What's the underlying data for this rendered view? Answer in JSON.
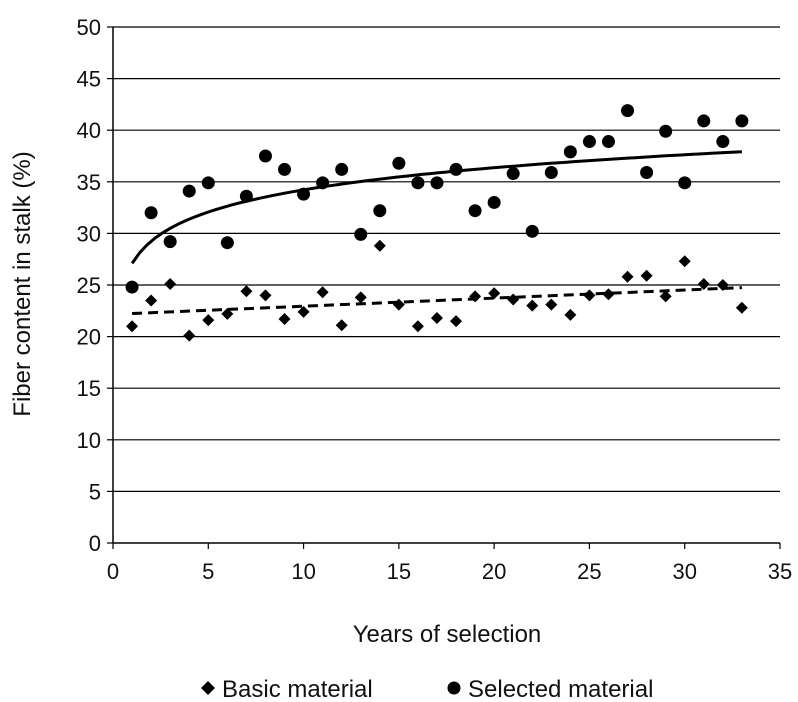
{
  "chart_data": {
    "type": "scatter",
    "title": "",
    "xlabel": "Years of selection",
    "ylabel": "Fiber content in stalk (%)",
    "xlim": [
      0,
      35
    ],
    "ylim": [
      0,
      50
    ],
    "x_ticks": [
      0,
      5,
      10,
      15,
      20,
      25,
      30,
      35
    ],
    "y_ticks": [
      0,
      5,
      10,
      15,
      20,
      25,
      30,
      35,
      40,
      45,
      50
    ],
    "grid": "horizontal",
    "legend_position": "bottom",
    "series": [
      {
        "name": "Basic material",
        "marker": "diamond",
        "color": "#000000",
        "trendline": "linear-dashed",
        "x": [
          1,
          2,
          3,
          4,
          5,
          6,
          7,
          8,
          9,
          10,
          11,
          12,
          13,
          14,
          15,
          16,
          17,
          18,
          19,
          20,
          21,
          22,
          23,
          24,
          25,
          26,
          27,
          28,
          29,
          30,
          31,
          32,
          33
        ],
        "y": [
          21.0,
          23.5,
          25.1,
          20.1,
          21.6,
          22.2,
          24.4,
          24.0,
          21.7,
          22.4,
          24.3,
          21.1,
          23.8,
          28.8,
          23.1,
          21.0,
          21.8,
          21.5,
          23.9,
          24.2,
          23.6,
          23.0,
          23.1,
          22.1,
          24.0,
          24.1,
          25.8,
          25.9,
          23.9,
          27.3,
          25.1,
          25.0,
          22.8
        ]
      },
      {
        "name": "Selected material",
        "marker": "circle",
        "color": "#000000",
        "trendline": "logarithmic-solid",
        "x": [
          1,
          2,
          3,
          4,
          5,
          6,
          7,
          8,
          9,
          10,
          11,
          12,
          13,
          14,
          15,
          16,
          17,
          18,
          19,
          20,
          21,
          22,
          23,
          24,
          25,
          26,
          27,
          28,
          29,
          30,
          31,
          32,
          33
        ],
        "y": [
          24.8,
          32.0,
          29.2,
          34.1,
          34.9,
          29.1,
          33.6,
          37.5,
          36.2,
          33.8,
          34.9,
          36.2,
          29.9,
          32.2,
          36.8,
          34.9,
          34.9,
          36.2,
          32.2,
          33.0,
          35.8,
          30.2,
          35.9,
          37.9,
          38.9,
          38.9,
          41.9,
          35.9,
          39.9,
          34.9,
          40.9,
          38.9,
          40.9
        ]
      }
    ]
  }
}
